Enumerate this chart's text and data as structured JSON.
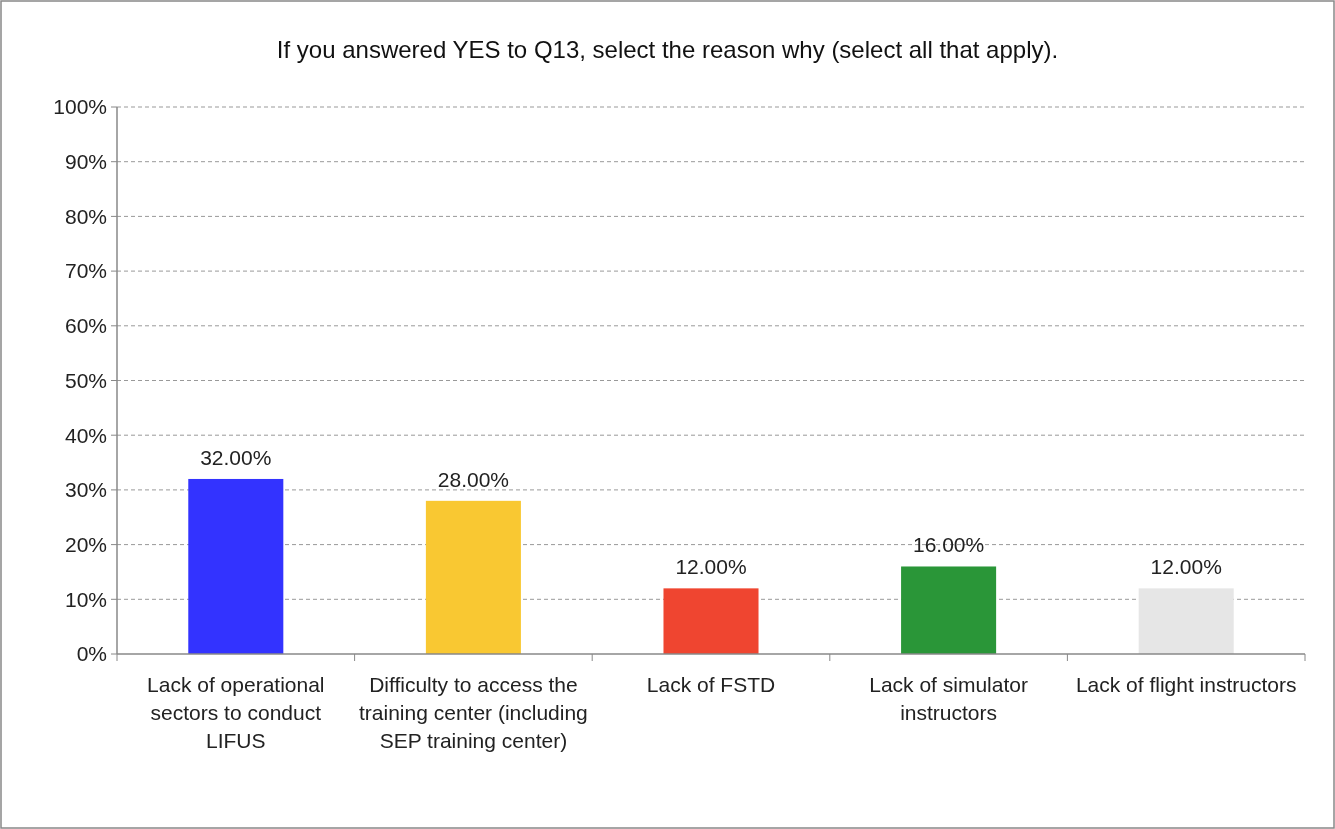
{
  "chart_data": {
    "type": "bar",
    "title": "If you answered YES to Q13, select the reason why (select all that apply).",
    "categories": [
      "Lack of operational sectors to conduct LIFUS",
      "Difficulty to access the training center (including SEP training center)",
      "Lack of FSTD",
      "Lack of simulator instructors",
      "Lack of flight instructors"
    ],
    "values": [
      32,
      28,
      12,
      16,
      12
    ],
    "colors": [
      "#3333ff",
      "#f9c832",
      "#ef4530",
      "#2a9638",
      "#e6e6e6"
    ],
    "value_labels": [
      "32.00%",
      "28.00%",
      "12.00%",
      "16.00%",
      "12.00%"
    ],
    "ylim": [
      0,
      100
    ],
    "yticks": [
      {
        "value": 0,
        "label": "0%"
      },
      {
        "value": 10,
        "label": "10%"
      },
      {
        "value": 20,
        "label": "20%"
      },
      {
        "value": 30,
        "label": "30%"
      },
      {
        "value": 40,
        "label": "40%"
      },
      {
        "value": 50,
        "label": "50%"
      },
      {
        "value": 60,
        "label": "60%"
      },
      {
        "value": 70,
        "label": "70%"
      },
      {
        "value": 80,
        "label": "80%"
      },
      {
        "value": 90,
        "label": "90%"
      },
      {
        "value": 100,
        "label": "100%"
      }
    ],
    "grid": "y"
  }
}
